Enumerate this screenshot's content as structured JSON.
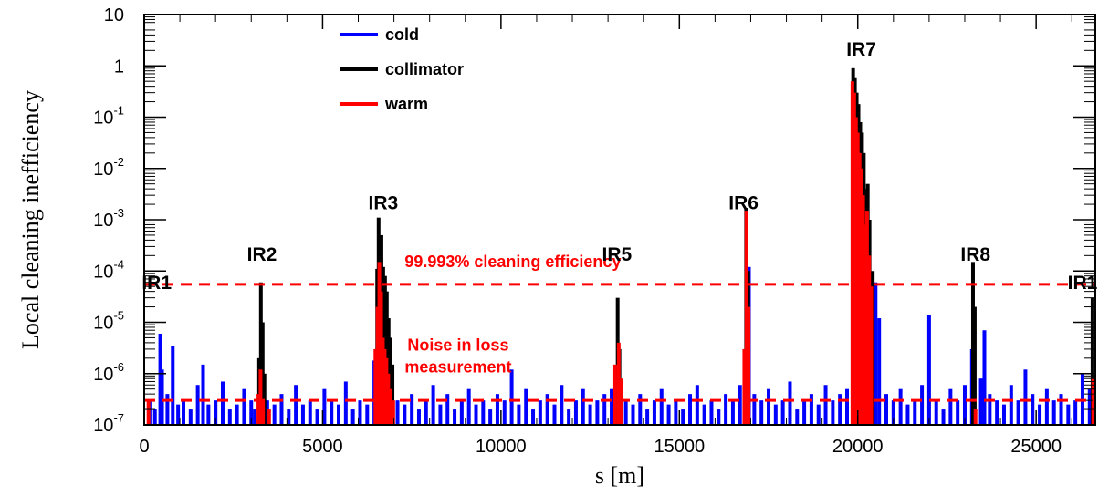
{
  "chart_data": {
    "type": "bar",
    "xlabel": "s [m]",
    "ylabel": "Local cleaning inefficiency",
    "xlim": [
      0,
      26659
    ],
    "ylim": [
      1e-07,
      10
    ],
    "yscale": "log",
    "x_ticks": [
      {
        "value": 0,
        "label": "0"
      },
      {
        "value": 5000,
        "label": "5000"
      },
      {
        "value": 10000,
        "label": "10000"
      },
      {
        "value": 15000,
        "label": "15000"
      },
      {
        "value": 20000,
        "label": "20000"
      },
      {
        "value": 25000,
        "label": "25000"
      }
    ],
    "y_ticks": [
      {
        "value": 1e-07,
        "base": "10",
        "exp": "-7"
      },
      {
        "value": 1e-06,
        "base": "10",
        "exp": "-6"
      },
      {
        "value": 1e-05,
        "base": "10",
        "exp": "-5"
      },
      {
        "value": 0.0001,
        "base": "10",
        "exp": "-4"
      },
      {
        "value": 0.001,
        "base": "10",
        "exp": "-3"
      },
      {
        "value": 0.01,
        "base": "10",
        "exp": "-2"
      },
      {
        "value": 0.1,
        "base": "10",
        "exp": "-1"
      },
      {
        "value": 1,
        "base": "1",
        "exp": ""
      },
      {
        "value": 10,
        "base": "10",
        "exp": ""
      }
    ],
    "legend": {
      "placement": "top-left",
      "entries": [
        {
          "name": "cold",
          "color": "#0000ff"
        },
        {
          "name": "collimator",
          "color": "#000000"
        },
        {
          "name": "warm",
          "color": "#ff0000"
        }
      ]
    },
    "ir_labels": [
      {
        "label": "IR1",
        "x": 350,
        "y": 4.5e-05
      },
      {
        "label": "IR2",
        "x": 3300,
        "y": 0.00016
      },
      {
        "label": "IR3",
        "x": 6700,
        "y": 0.0016
      },
      {
        "label": "IR5",
        "x": 13250,
        "y": 0.00016
      },
      {
        "label": "IR6",
        "x": 16800,
        "y": 0.0016
      },
      {
        "label": "IR7",
        "x": 20100,
        "y": 1.6
      },
      {
        "label": "IR8",
        "x": 23300,
        "y": 0.00016
      },
      {
        "label": "IR1",
        "x": 26300,
        "y": 4.5e-05
      }
    ],
    "thresholds": [
      {
        "y": 5.5e-05,
        "label": "99.993% cleaning efficiency",
        "label_x": 7300,
        "label_y": 0.00012,
        "color": "#ff0000"
      },
      {
        "y": 3e-07,
        "label": "",
        "color": "#ff0000"
      }
    ],
    "annotations": [
      {
        "text": "Noise in loss",
        "x": 8800,
        "y": 2.8e-06
      },
      {
        "text": "measurement",
        "x": 8800,
        "y": 1.05e-06
      }
    ],
    "series": [
      {
        "name": "cold",
        "color": "#0000ff",
        "points": [
          [
            150,
            3e-07
          ],
          [
            300,
            2e-07
          ],
          [
            450,
            6e-06
          ],
          [
            500,
            1.2e-06
          ],
          [
            650,
            4e-07
          ],
          [
            800,
            3.5e-06
          ],
          [
            950,
            2.5e-07
          ],
          [
            1100,
            3e-07
          ],
          [
            1300,
            2e-07
          ],
          [
            1500,
            6e-07
          ],
          [
            1650,
            1.5e-06
          ],
          [
            1800,
            2.5e-07
          ],
          [
            2000,
            3e-07
          ],
          [
            2200,
            7e-07
          ],
          [
            2400,
            2e-07
          ],
          [
            2600,
            2.5e-07
          ],
          [
            2800,
            5e-07
          ],
          [
            3000,
            3e-07
          ],
          [
            3100,
            2e-07
          ],
          [
            3250,
            1.1e-06
          ],
          [
            3450,
            3e-07
          ],
          [
            3650,
            2.5e-07
          ],
          [
            3850,
            4e-07
          ],
          [
            4050,
            2e-07
          ],
          [
            4250,
            6e-07
          ],
          [
            4450,
            2.5e-07
          ],
          [
            4650,
            3e-07
          ],
          [
            4850,
            2e-07
          ],
          [
            5050,
            5e-07
          ],
          [
            5250,
            3e-07
          ],
          [
            5450,
            2.5e-07
          ],
          [
            5650,
            7e-07
          ],
          [
            5850,
            2e-07
          ],
          [
            6050,
            3e-07
          ],
          [
            6250,
            2.5e-07
          ],
          [
            6450,
            1.8e-06
          ],
          [
            6550,
            5e-06
          ],
          [
            6650,
            3e-06
          ],
          [
            6750,
            2e-06
          ],
          [
            6850,
            1.2e-06
          ],
          [
            6950,
            6e-07
          ],
          [
            7100,
            3e-07
          ],
          [
            7300,
            2.5e-07
          ],
          [
            7500,
            4e-07
          ],
          [
            7700,
            2e-07
          ],
          [
            7900,
            3e-07
          ],
          [
            8100,
            6e-07
          ],
          [
            8300,
            2.5e-07
          ],
          [
            8500,
            4e-07
          ],
          [
            8700,
            2e-07
          ],
          [
            8900,
            3e-07
          ],
          [
            9100,
            5e-07
          ],
          [
            9300,
            2.5e-07
          ],
          [
            9500,
            3e-07
          ],
          [
            9700,
            2e-07
          ],
          [
            9900,
            4e-07
          ],
          [
            10100,
            3e-07
          ],
          [
            10300,
            1.2e-06
          ],
          [
            10500,
            2.5e-07
          ],
          [
            10700,
            5e-07
          ],
          [
            10900,
            2e-07
          ],
          [
            11100,
            3e-07
          ],
          [
            11300,
            4e-07
          ],
          [
            11500,
            2.5e-07
          ],
          [
            11700,
            6e-07
          ],
          [
            11900,
            2e-07
          ],
          [
            12100,
            3e-07
          ],
          [
            12300,
            5e-07
          ],
          [
            12500,
            2.5e-07
          ],
          [
            12700,
            3e-07
          ],
          [
            12900,
            4e-07
          ],
          [
            13100,
            5e-07
          ],
          [
            13300,
            2e-06
          ],
          [
            13500,
            3e-07
          ],
          [
            13700,
            2.5e-07
          ],
          [
            13900,
            4e-07
          ],
          [
            14100,
            2e-07
          ],
          [
            14300,
            3e-07
          ],
          [
            14500,
            5e-07
          ],
          [
            14700,
            2.5e-07
          ],
          [
            14900,
            3e-07
          ],
          [
            15100,
            2e-07
          ],
          [
            15300,
            4e-07
          ],
          [
            15500,
            6e-07
          ],
          [
            15700,
            2.5e-07
          ],
          [
            15900,
            3e-07
          ],
          [
            16100,
            2e-07
          ],
          [
            16300,
            4e-07
          ],
          [
            16500,
            3e-07
          ],
          [
            16700,
            6e-07
          ],
          [
            16950,
            0.00012
          ],
          [
            17100,
            4e-07
          ],
          [
            17300,
            3e-07
          ],
          [
            17500,
            5e-07
          ],
          [
            17700,
            2.5e-07
          ],
          [
            17900,
            3e-07
          ],
          [
            18100,
            7e-07
          ],
          [
            18300,
            2e-07
          ],
          [
            18500,
            3e-07
          ],
          [
            18700,
            4e-07
          ],
          [
            18900,
            2.5e-07
          ],
          [
            19100,
            6e-07
          ],
          [
            19300,
            3e-07
          ],
          [
            19500,
            4e-07
          ],
          [
            19700,
            5e-07
          ],
          [
            20000,
            3e-06
          ],
          [
            20200,
            3e-05
          ],
          [
            20350,
            1e-05
          ],
          [
            20500,
            6e-05
          ],
          [
            20600,
            1.2e-05
          ],
          [
            20800,
            4e-07
          ],
          [
            21000,
            3e-07
          ],
          [
            21200,
            5e-07
          ],
          [
            21400,
            2.5e-07
          ],
          [
            21600,
            3e-07
          ],
          [
            21800,
            6e-07
          ],
          [
            22000,
            1.4e-05
          ],
          [
            22200,
            3e-07
          ],
          [
            22400,
            2e-07
          ],
          [
            22600,
            5e-07
          ],
          [
            22800,
            3e-07
          ],
          [
            23000,
            6e-07
          ],
          [
            23200,
            3e-06
          ],
          [
            23450,
            8e-07
          ],
          [
            23550,
            7e-06
          ],
          [
            23700,
            4e-07
          ],
          [
            23900,
            3e-07
          ],
          [
            24100,
            2.5e-07
          ],
          [
            24300,
            6e-07
          ],
          [
            24500,
            3e-07
          ],
          [
            24700,
            1.2e-06
          ],
          [
            24900,
            4e-07
          ],
          [
            25100,
            2.5e-07
          ],
          [
            25300,
            5e-07
          ],
          [
            25500,
            3e-07
          ],
          [
            25700,
            4e-07
          ],
          [
            25900,
            2.5e-07
          ],
          [
            26100,
            3e-07
          ],
          [
            26300,
            1e-06
          ],
          [
            26500,
            5e-07
          ]
        ]
      },
      {
        "name": "collimator",
        "color": "#000000",
        "points": [
          [
            3220,
            2e-06
          ],
          [
            3270,
            6e-05
          ],
          [
            3320,
            1e-05
          ],
          [
            3370,
            1e-06
          ],
          [
            6530,
            0.00011
          ],
          [
            6570,
            0.0011
          ],
          [
            6610,
            0.0003
          ],
          [
            6650,
            0.0005
          ],
          [
            6700,
            0.00012
          ],
          [
            6750,
            8e-05
          ],
          [
            6800,
            4e-05
          ],
          [
            6850,
            1.2e-05
          ],
          [
            6900,
            5e-06
          ],
          [
            6960,
            1.5e-06
          ],
          [
            13270,
            3e-05
          ],
          [
            13320,
            3e-06
          ],
          [
            16870,
            0.0017
          ],
          [
            16930,
            0.0001
          ],
          [
            19870,
            0.9
          ],
          [
            19920,
            0.6
          ],
          [
            19970,
            0.3
          ],
          [
            20020,
            0.18
          ],
          [
            20070,
            0.08
          ],
          [
            20120,
            0.05
          ],
          [
            20170,
            0.02
          ],
          [
            20230,
            0.004
          ],
          [
            20280,
            0.005
          ],
          [
            20330,
            0.001
          ],
          [
            20420,
            0.0001
          ],
          [
            23230,
            0.00015
          ],
          [
            23280,
            2e-05
          ],
          [
            26580,
            3e-05
          ]
        ]
      },
      {
        "name": "warm",
        "color": "#ff0000",
        "points": [
          [
            120,
            3e-07
          ],
          [
            3200,
            4e-07
          ],
          [
            3260,
            1.2e-06
          ],
          [
            3330,
            3e-07
          ],
          [
            3500,
            2e-07
          ],
          [
            6480,
            3e-06
          ],
          [
            6540,
            2e-05
          ],
          [
            6590,
            0.00015
          ],
          [
            6640,
            4e-05
          ],
          [
            6690,
            5e-06
          ],
          [
            6740,
            3e-06
          ],
          [
            6790,
            2e-06
          ],
          [
            6840,
            1e-06
          ],
          [
            6900,
            5e-07
          ],
          [
            6980,
            3e-07
          ],
          [
            13200,
            1.5e-06
          ],
          [
            13300,
            4e-06
          ],
          [
            13380,
            8e-07
          ],
          [
            16820,
            3e-06
          ],
          [
            16880,
            0.0015
          ],
          [
            16940,
            2e-05
          ],
          [
            19850,
            0.5
          ],
          [
            19900,
            0.3
          ],
          [
            19950,
            0.1
          ],
          [
            20000,
            0.05
          ],
          [
            20050,
            0.02
          ],
          [
            20100,
            0.01
          ],
          [
            20150,
            0.003
          ],
          [
            20200,
            0.0008
          ],
          [
            20260,
            0.0015
          ],
          [
            20320,
            0.0002
          ],
          [
            20380,
            5e-05
          ],
          [
            23300,
            2e-07
          ],
          [
            26600,
            8e-07
          ]
        ]
      }
    ]
  }
}
